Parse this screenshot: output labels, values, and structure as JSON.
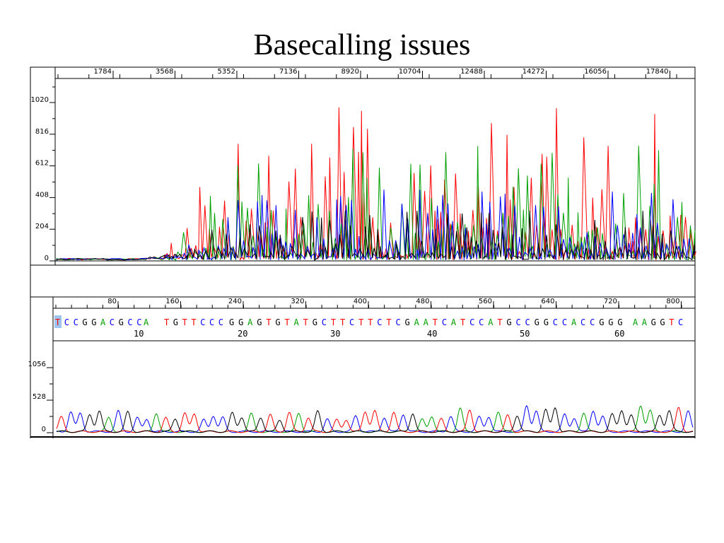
{
  "title": "Basecalling issues",
  "colors": {
    "A": "#00a000",
    "C": "#0000ff",
    "G": "#000000",
    "T": "#ff0000",
    "highlight": "#9ec5f0"
  },
  "raw_panel": {
    "top_axis_ticks": [
      "1784",
      "3568",
      "5352",
      "7136",
      "8920",
      "10704",
      "12488",
      "14272",
      "16056",
      "17840"
    ],
    "y_ticks": [
      "0",
      "204",
      "408",
      "612",
      "816",
      "1020"
    ]
  },
  "basecall_panel": {
    "top_axis_ticks": [
      "80",
      "160",
      "240",
      "320",
      "400",
      "480",
      "560",
      "640",
      "720",
      "800"
    ],
    "y_ticks": [
      "0",
      "528",
      "1056"
    ],
    "sequence_groups": [
      {
        "seq": "TCCGGACGCC",
        "idx": ""
      },
      {
        "seq": "A",
        "idx": ""
      },
      {
        "seq": "TGTTCCC",
        "idx": "10"
      },
      {
        "seq": "GGAGTGTATGCTTCTTCTCGAATCATCCATGCCGGCCACCGGG",
        "idx": ""
      },
      {
        "seq": "AAGGTC",
        "idx": ""
      }
    ],
    "index_labels": [
      "10",
      "20",
      "30",
      "40",
      "50",
      "60"
    ]
  }
}
